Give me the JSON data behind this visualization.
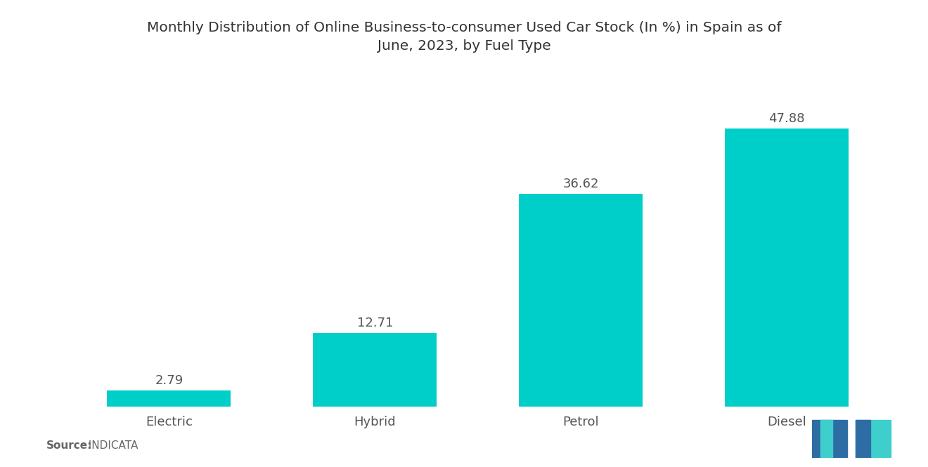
{
  "title": "Monthly Distribution of Online Business-to-consumer Used Car Stock (In %) in Spain as of\nJune, 2023, by Fuel Type",
  "categories": [
    "Electric",
    "Hybrid",
    "Petrol",
    "Diesel"
  ],
  "values": [
    2.79,
    12.71,
    36.62,
    47.88
  ],
  "bar_color": "#00CEC9",
  "background_color": "#ffffff",
  "title_fontsize": 14.5,
  "label_fontsize": 13,
  "value_fontsize": 13,
  "source_label": "Source:",
  "source_value": "  INDICATA",
  "source_fontsize": 11,
  "text_color": "#555555",
  "ylim": [
    0,
    58
  ]
}
